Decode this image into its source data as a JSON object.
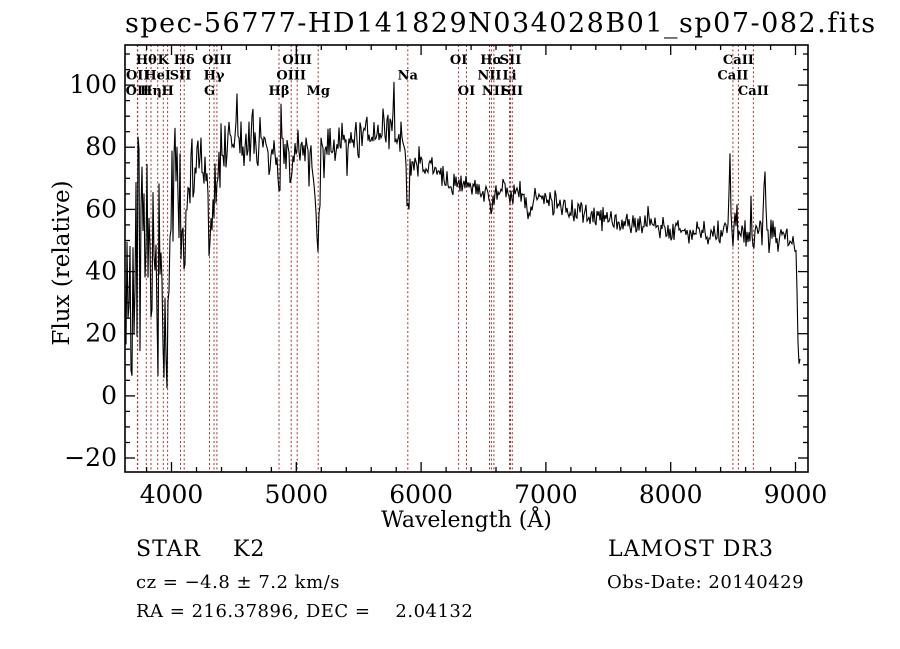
{
  "annotations": {
    "class_label": "STAR    K2",
    "survey": "LAMOST DR3",
    "cz": "cz = −4.8 ± 7.2 km/s",
    "obs_date": "Obs-Date: 20140429",
    "coords": "RA = 216.37896, DEC =    2.04132"
  },
  "chart_data": {
    "type": "line",
    "title": "spec-56777-HD141829N034028B01_sp07-082.fits",
    "xlabel": "Wavelength (Å)",
    "ylabel": "Flux (relative)",
    "xlim": [
      3627,
      9100
    ],
    "ylim": [
      -24.5,
      112.9
    ],
    "xticks": [
      4000,
      5000,
      6000,
      7000,
      8000,
      9000
    ],
    "yticks": [
      -20,
      0,
      20,
      40,
      60,
      80,
      100
    ],
    "x_minor_step": 200,
    "y_minor_step": 5,
    "grid": false,
    "line_color": "#000000",
    "marker_color": "#a03030",
    "seed": 42,
    "spectral_lines": [
      {
        "label": "OII",
        "wavelength": 3726.0,
        "row": 3
      },
      {
        "label": "OII",
        "wavelength": 3728.8,
        "row": 2
      },
      {
        "label": "Hθ",
        "wavelength": 3797.9,
        "row": 1
      },
      {
        "label": "Hη",
        "wavelength": 3835.4,
        "row": 3
      },
      {
        "label": "HeI",
        "wavelength": 3889.0,
        "row": 2
      },
      {
        "label": "K",
        "wavelength": 3933.7,
        "row": 1
      },
      {
        "label": "H",
        "wavelength": 3968.5,
        "row": 3
      },
      {
        "label": "SII",
        "wavelength": 4071.7,
        "row": 2
      },
      {
        "label": "Hδ",
        "wavelength": 4101.7,
        "row": 1
      },
      {
        "label": "G",
        "wavelength": 4304.4,
        "row": 3
      },
      {
        "label": "Hγ",
        "wavelength": 4340.5,
        "row": 2
      },
      {
        "label": "OIII",
        "wavelength": 4363.2,
        "row": 1
      },
      {
        "label": "Hβ",
        "wavelength": 4861.3,
        "row": 3
      },
      {
        "label": "OIII",
        "wavelength": 4958.9,
        "row": 2
      },
      {
        "label": "OIII",
        "wavelength": 5006.8,
        "row": 1
      },
      {
        "label": "Mg",
        "wavelength": 5175.3,
        "row": 3
      },
      {
        "label": "Na",
        "wavelength": 5892.9,
        "row": 2
      },
      {
        "label": "OI",
        "wavelength": 6300.3,
        "row": 1
      },
      {
        "label": "OI",
        "wavelength": 6363.8,
        "row": 3
      },
      {
        "label": "NII",
        "wavelength": 6548.0,
        "row": 2
      },
      {
        "label": "Hα",
        "wavelength": 6562.8,
        "row": 1
      },
      {
        "label": "NII",
        "wavelength": 6583.4,
        "row": 3
      },
      {
        "label": "Li",
        "wavelength": 6707.8,
        "row": 2
      },
      {
        "label": "SII",
        "wavelength": 6716.4,
        "row": 1
      },
      {
        "label": "SII",
        "wavelength": 6730.8,
        "row": 3
      },
      {
        "label": "CaII",
        "wavelength": 8498.0,
        "row": 2
      },
      {
        "label": "CaII",
        "wavelength": 8542.1,
        "row": 1
      },
      {
        "label": "CaII",
        "wavelength": 8662.1,
        "row": 3
      }
    ],
    "continuum": [
      [
        3627,
        20
      ],
      [
        3640,
        50
      ],
      [
        3655,
        30
      ],
      [
        3670,
        55
      ],
      [
        3685,
        35
      ],
      [
        3700,
        55
      ],
      [
        3715,
        45
      ],
      [
        3727,
        55
      ],
      [
        3740,
        48
      ],
      [
        3760,
        60
      ],
      [
        3780,
        50
      ],
      [
        3798,
        42
      ],
      [
        3815,
        55
      ],
      [
        3835,
        20
      ],
      [
        3850,
        55
      ],
      [
        3865,
        45
      ],
      [
        3880,
        40
      ],
      [
        3900,
        60
      ],
      [
        3915,
        55
      ],
      [
        3933,
        8
      ],
      [
        3950,
        50
      ],
      [
        3968,
        -5
      ],
      [
        3985,
        50
      ],
      [
        4000,
        58
      ],
      [
        4020,
        68
      ],
      [
        4040,
        72
      ],
      [
        4060,
        65
      ],
      [
        4080,
        60
      ],
      [
        4102,
        40
      ],
      [
        4120,
        70
      ],
      [
        4140,
        74
      ],
      [
        4160,
        76
      ],
      [
        4180,
        73
      ],
      [
        4200,
        72
      ],
      [
        4230,
        70
      ],
      [
        4260,
        71
      ],
      [
        4290,
        62
      ],
      [
        4305,
        45
      ],
      [
        4320,
        65
      ],
      [
        4340,
        60
      ],
      [
        4360,
        70
      ],
      [
        4380,
        76
      ],
      [
        4400,
        78
      ],
      [
        4430,
        80
      ],
      [
        4460,
        81
      ],
      [
        4490,
        80
      ],
      [
        4520,
        84
      ],
      [
        4525,
        99
      ],
      [
        4535,
        82
      ],
      [
        4560,
        80
      ],
      [
        4590,
        82
      ],
      [
        4620,
        80
      ],
      [
        4650,
        81
      ],
      [
        4680,
        79
      ],
      [
        4710,
        80
      ],
      [
        4740,
        81
      ],
      [
        4770,
        76
      ],
      [
        4800,
        79
      ],
      [
        4830,
        77
      ],
      [
        4861,
        62
      ],
      [
        4880,
        76
      ],
      [
        4900,
        78
      ],
      [
        4930,
        77
      ],
      [
        4960,
        76
      ],
      [
        4990,
        78
      ],
      [
        5020,
        79
      ],
      [
        5050,
        80
      ],
      [
        5080,
        79
      ],
      [
        5110,
        77
      ],
      [
        5140,
        72
      ],
      [
        5175,
        50
      ],
      [
        5200,
        76
      ],
      [
        5230,
        80
      ],
      [
        5260,
        81
      ],
      [
        5290,
        80
      ],
      [
        5320,
        82
      ],
      [
        5350,
        81
      ],
      [
        5380,
        83
      ],
      [
        5420,
        82
      ],
      [
        5460,
        81
      ],
      [
        5500,
        83
      ],
      [
        5540,
        84
      ],
      [
        5580,
        83
      ],
      [
        5620,
        84
      ],
      [
        5660,
        83
      ],
      [
        5700,
        85
      ],
      [
        5740,
        84
      ],
      [
        5775,
        86
      ],
      [
        5782,
        97
      ],
      [
        5790,
        85
      ],
      [
        5820,
        84
      ],
      [
        5850,
        82
      ],
      [
        5875,
        76
      ],
      [
        5893,
        60
      ],
      [
        5910,
        72
      ],
      [
        5930,
        75
      ],
      [
        5960,
        77
      ],
      [
        5990,
        76
      ],
      [
        6020,
        75
      ],
      [
        6050,
        74
      ],
      [
        6080,
        73
      ],
      [
        6110,
        73
      ],
      [
        6140,
        72
      ],
      [
        6170,
        71
      ],
      [
        6200,
        71
      ],
      [
        6230,
        70
      ],
      [
        6260,
        69
      ],
      [
        6300,
        67
      ],
      [
        6330,
        68
      ],
      [
        6360,
        67
      ],
      [
        6400,
        68
      ],
      [
        6440,
        67
      ],
      [
        6480,
        66
      ],
      [
        6520,
        66
      ],
      [
        6550,
        64
      ],
      [
        6563,
        58
      ],
      [
        6580,
        64
      ],
      [
        6610,
        66
      ],
      [
        6650,
        67
      ],
      [
        6690,
        66
      ],
      [
        6730,
        65
      ],
      [
        6770,
        65
      ],
      [
        6810,
        64
      ],
      [
        6840,
        63
      ],
      [
        6870,
        60
      ],
      [
        6900,
        63
      ],
      [
        6940,
        64
      ],
      [
        6980,
        63
      ],
      [
        7020,
        63
      ],
      [
        7060,
        62
      ],
      [
        7100,
        62
      ],
      [
        7150,
        61
      ],
      [
        7200,
        60
      ],
      [
        7250,
        60
      ],
      [
        7300,
        59
      ],
      [
        7350,
        59
      ],
      [
        7400,
        58
      ],
      [
        7450,
        58
      ],
      [
        7500,
        57
      ],
      [
        7550,
        56
      ],
      [
        7600,
        53
      ],
      [
        7630,
        56
      ],
      [
        7660,
        57
      ],
      [
        7700,
        56
      ],
      [
        7740,
        55
      ],
      [
        7780,
        55
      ],
      [
        7820,
        55
      ],
      [
        7860,
        54
      ],
      [
        7900,
        54
      ],
      [
        7940,
        54
      ],
      [
        7980,
        53
      ],
      [
        8020,
        54
      ],
      [
        8060,
        53
      ],
      [
        8100,
        53
      ],
      [
        8140,
        53
      ],
      [
        8180,
        54
      ],
      [
        8220,
        53
      ],
      [
        8260,
        53
      ],
      [
        8300,
        52
      ],
      [
        8340,
        53
      ],
      [
        8380,
        52
      ],
      [
        8420,
        53
      ],
      [
        8460,
        55
      ],
      [
        8475,
        74
      ],
      [
        8485,
        56
      ],
      [
        8498,
        50
      ],
      [
        8512,
        56
      ],
      [
        8528,
        55
      ],
      [
        8542,
        50
      ],
      [
        8560,
        54
      ],
      [
        8590,
        53
      ],
      [
        8620,
        52
      ],
      [
        8645,
        53
      ],
      [
        8662,
        49
      ],
      [
        8680,
        53
      ],
      [
        8700,
        54
      ],
      [
        8730,
        53
      ],
      [
        8757,
        70
      ],
      [
        8770,
        55
      ],
      [
        8800,
        53
      ],
      [
        8840,
        52
      ],
      [
        8880,
        51
      ],
      [
        8920,
        51
      ],
      [
        8960,
        50
      ],
      [
        9000,
        49
      ],
      [
        9008,
        46
      ],
      [
        9015,
        28
      ],
      [
        9022,
        12
      ],
      [
        9032,
        10
      ],
      [
        9040,
        13
      ]
    ],
    "noise_amp": [
      [
        3627,
        40
      ],
      [
        3700,
        38
      ],
      [
        3780,
        34
      ],
      [
        3850,
        32
      ],
      [
        3930,
        28
      ],
      [
        4000,
        22
      ],
      [
        4080,
        17
      ],
      [
        4160,
        14
      ],
      [
        4250,
        12
      ],
      [
        4350,
        11
      ],
      [
        4450,
        10
      ],
      [
        4600,
        9
      ],
      [
        4800,
        8.5
      ],
      [
        5000,
        8
      ],
      [
        5200,
        7.5
      ],
      [
        5400,
        7
      ],
      [
        5600,
        6.5
      ],
      [
        5800,
        6
      ],
      [
        5900,
        5.5
      ],
      [
        6100,
        5
      ],
      [
        6300,
        4.5
      ],
      [
        6563,
        4
      ],
      [
        6800,
        4
      ],
      [
        7100,
        3.5
      ],
      [
        7400,
        3.5
      ],
      [
        7700,
        3.2
      ],
      [
        8000,
        3.2
      ],
      [
        8300,
        3.5
      ],
      [
        8500,
        4.5
      ],
      [
        8700,
        4.5
      ],
      [
        8900,
        4
      ],
      [
        9000,
        3
      ],
      [
        9020,
        2
      ],
      [
        9040,
        2
      ]
    ]
  }
}
